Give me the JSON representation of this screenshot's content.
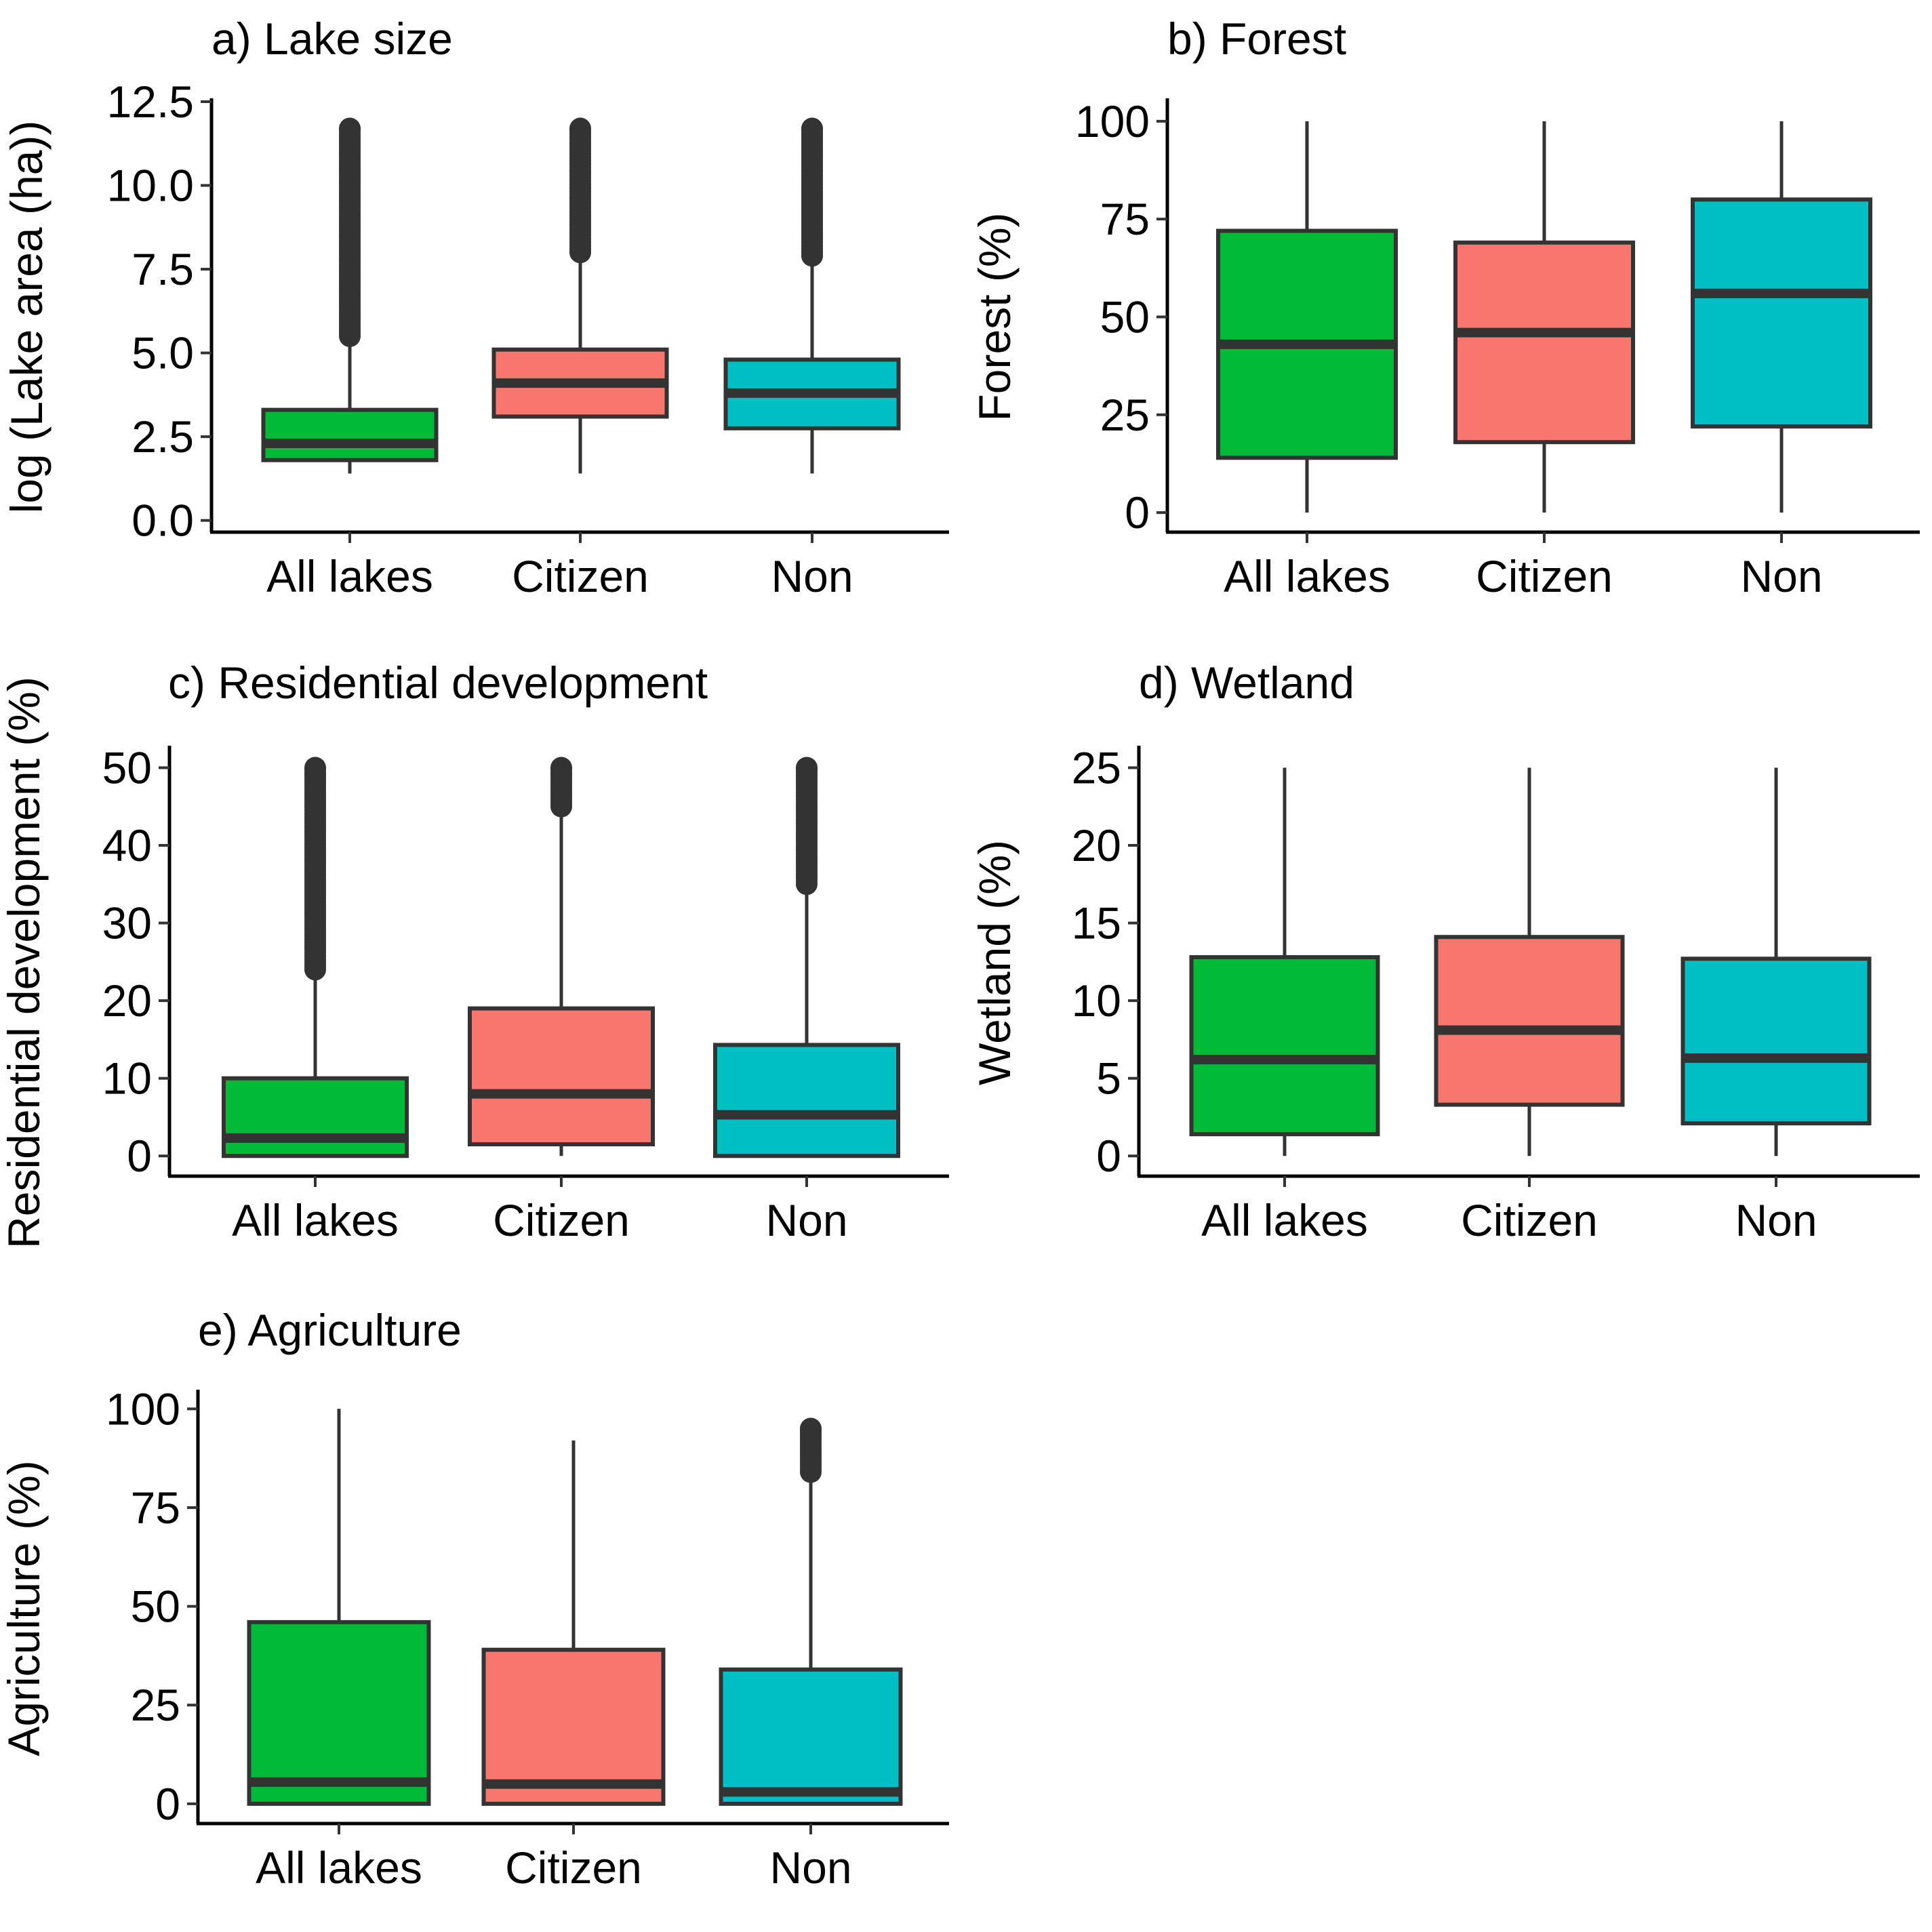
{
  "colors": {
    "all_lakes": "#00BA38",
    "citizen": "#F8766D",
    "non": "#00BFC4",
    "outline": "#333333",
    "axis": "#000000"
  },
  "chart_data": [
    {
      "type": "box",
      "title": "a) Lake size",
      "ylabel": "log (Lake area (ha))",
      "xlabel": "",
      "ylim": [
        -0.35,
        12.5
      ],
      "yticks": [
        "0.0",
        "2.5",
        "5.0",
        "7.5",
        "10.0",
        "12.5"
      ],
      "categories": [
        "All lakes",
        "Citizen",
        "Non"
      ],
      "boxes": [
        {
          "category": "All lakes",
          "whisker_low": 1.4,
          "q1": 1.8,
          "median": 2.3,
          "q3": 3.3,
          "whisker_high": 5.5,
          "outliers_from": 5.5,
          "outliers_to": 11.7
        },
        {
          "category": "Citizen",
          "whisker_low": 1.4,
          "q1": 3.1,
          "median": 4.1,
          "q3": 5.1,
          "whisker_high": 8.0,
          "outliers_from": 8.0,
          "outliers_to": 11.7
        },
        {
          "category": "Non",
          "whisker_low": 1.4,
          "q1": 2.75,
          "median": 3.8,
          "q3": 4.8,
          "whisker_high": 7.9,
          "outliers_from": 7.9,
          "outliers_to": 11.7
        }
      ]
    },
    {
      "type": "box",
      "title": "b) Forest",
      "ylabel": "Forest (%)",
      "xlabel": "",
      "ylim": [
        -5,
        105
      ],
      "yticks": [
        "0",
        "25",
        "50",
        "75",
        "100"
      ],
      "categories": [
        "All lakes",
        "Citizen",
        "Non"
      ],
      "boxes": [
        {
          "category": "All lakes",
          "whisker_low": 0,
          "q1": 14,
          "median": 43,
          "q3": 72,
          "whisker_high": 100
        },
        {
          "category": "Citizen",
          "whisker_low": 0,
          "q1": 18,
          "median": 46,
          "q3": 69,
          "whisker_high": 100
        },
        {
          "category": "Non",
          "whisker_low": 0,
          "q1": 22,
          "median": 56,
          "q3": 80,
          "whisker_high": 100
        }
      ]
    },
    {
      "type": "box",
      "title": "c) Residential development",
      "ylabel": "Residential development (%)",
      "xlabel": "",
      "ylim": [
        -2.6,
        52.4
      ],
      "yticks": [
        "0",
        "10",
        "20",
        "30",
        "40",
        "50"
      ],
      "categories": [
        "All lakes",
        "Citizen",
        "Non"
      ],
      "boxes": [
        {
          "category": "All lakes",
          "whisker_low": 0,
          "q1": 0,
          "median": 2.3,
          "q3": 10,
          "whisker_high": 24,
          "outliers_from": 24,
          "outliers_to": 50
        },
        {
          "category": "Citizen",
          "whisker_low": 0,
          "q1": 1.5,
          "median": 8,
          "q3": 19,
          "whisker_high": 45,
          "outliers_from": 45,
          "outliers_to": 50
        },
        {
          "category": "Non",
          "whisker_low": 0,
          "q1": 0,
          "median": 5.3,
          "q3": 14.3,
          "whisker_high": 35,
          "outliers_from": 35,
          "outliers_to": 50
        }
      ]
    },
    {
      "type": "box",
      "title": "d) Wetland",
      "ylabel": "Wetland (%)",
      "xlabel": "",
      "ylim": [
        -1.3,
        26.2
      ],
      "yticks": [
        "0",
        "5",
        "10",
        "15",
        "20",
        "25"
      ],
      "categories": [
        "All lakes",
        "Citizen",
        "Non"
      ],
      "boxes": [
        {
          "category": "All lakes",
          "whisker_low": 0,
          "q1": 1.4,
          "median": 6.2,
          "q3": 12.8,
          "whisker_high": 25
        },
        {
          "category": "Citizen",
          "whisker_low": 0,
          "q1": 3.3,
          "median": 8.1,
          "q3": 14.1,
          "whisker_high": 25
        },
        {
          "category": "Non",
          "whisker_low": 0,
          "q1": 2.1,
          "median": 6.3,
          "q3": 12.7,
          "whisker_high": 25
        }
      ]
    },
    {
      "type": "box",
      "title": "e) Agriculture",
      "ylabel": "Agriculture (%)",
      "xlabel": "",
      "ylim": [
        -5,
        104
      ],
      "yticks": [
        "0",
        "25",
        "50",
        "75",
        "100"
      ],
      "categories": [
        "All lakes",
        "Citizen",
        "Non"
      ],
      "boxes": [
        {
          "category": "All lakes",
          "whisker_low": 0,
          "q1": 0,
          "median": 5.5,
          "q3": 46,
          "whisker_high": 100
        },
        {
          "category": "Citizen",
          "whisker_low": 0,
          "q1": 0,
          "median": 5,
          "q3": 39,
          "whisker_high": 92
        },
        {
          "category": "Non",
          "whisker_low": 0,
          "q1": 0,
          "median": 3,
          "q3": 34,
          "whisker_high": 84,
          "outliers_from": 84,
          "outliers_to": 95
        }
      ]
    }
  ]
}
